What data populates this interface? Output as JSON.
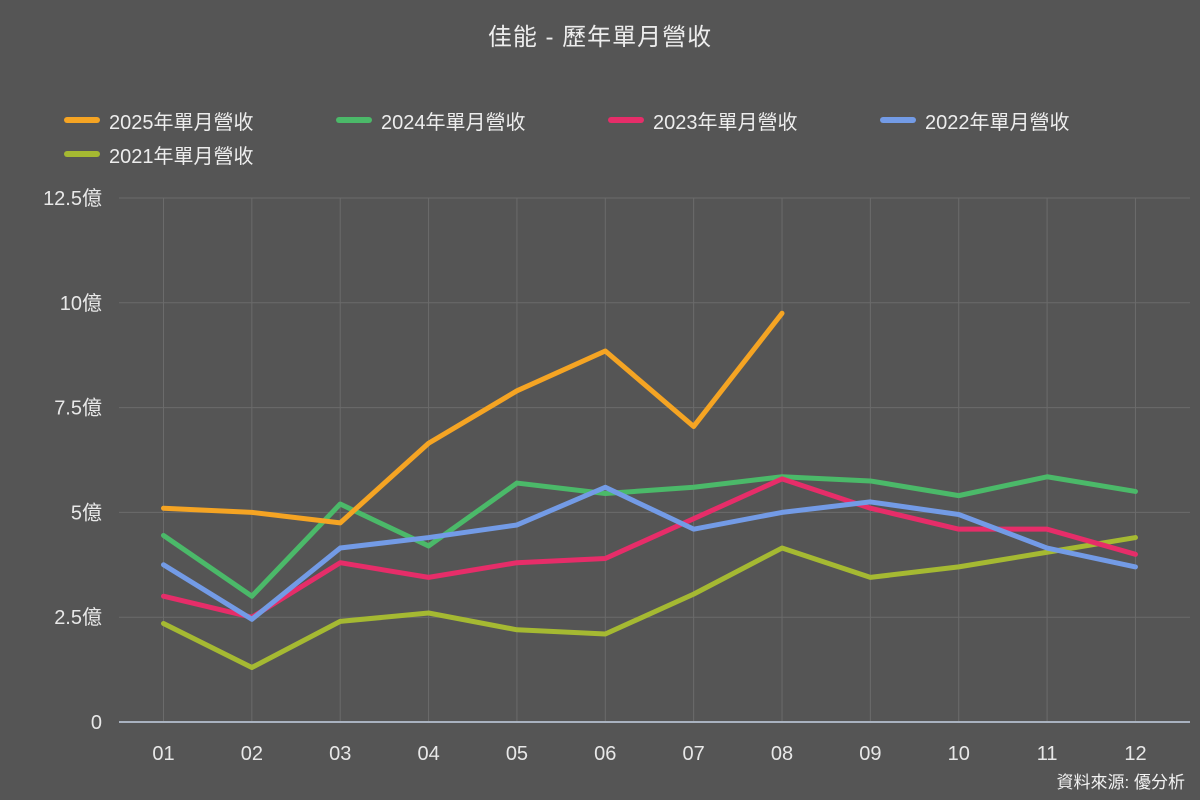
{
  "title": "佳能 - 歷年單月營收",
  "source": "資料來源: 優分析",
  "theme": {
    "background": "#555555",
    "grid_color": "#6B6B6B",
    "axis_color": "#A9B2C0",
    "text_color": "#EDEDED"
  },
  "chart_data": {
    "type": "line",
    "title": "佳能 - 歷年單月營收",
    "unit": "億",
    "grid": true,
    "legend_position": "top-left",
    "x": [
      "01",
      "02",
      "03",
      "04",
      "05",
      "06",
      "07",
      "08",
      "09",
      "10",
      "11",
      "12"
    ],
    "ylim": [
      0,
      12.5
    ],
    "yticks": [
      {
        "value": 0,
        "label": "0"
      },
      {
        "value": 2.5,
        "label": "2.5億"
      },
      {
        "value": 5,
        "label": "5億"
      },
      {
        "value": 7.5,
        "label": "7.5億"
      },
      {
        "value": 10,
        "label": "10億"
      },
      {
        "value": 12.5,
        "label": "12.5億"
      }
    ],
    "series": [
      {
        "name": "2025年單月營收",
        "color": "#F5A423",
        "values": [
          5.1,
          5.0,
          4.75,
          6.65,
          7.9,
          8.85,
          7.05,
          9.75
        ]
      },
      {
        "name": "2024年單月營收",
        "color": "#4BB969",
        "values": [
          4.45,
          3.0,
          5.2,
          4.2,
          5.7,
          5.45,
          5.6,
          5.85,
          5.75,
          5.4,
          5.85,
          5.5
        ]
      },
      {
        "name": "2023年單月營收",
        "color": "#E62D69",
        "values": [
          3.0,
          2.5,
          3.8,
          3.45,
          3.8,
          3.9,
          4.85,
          5.8,
          5.1,
          4.6,
          4.6,
          4.0
        ]
      },
      {
        "name": "2022年單月營收",
        "color": "#739BE6",
        "values": [
          3.75,
          2.45,
          4.15,
          4.4,
          4.7,
          5.6,
          4.6,
          5.0,
          5.25,
          4.95,
          4.15,
          3.7
        ]
      },
      {
        "name": "2021年單月營收",
        "color": "#A5B932",
        "values": [
          2.35,
          1.3,
          2.4,
          2.6,
          2.2,
          2.1,
          3.05,
          4.15,
          3.45,
          3.7,
          4.05,
          4.4
        ]
      }
    ]
  }
}
